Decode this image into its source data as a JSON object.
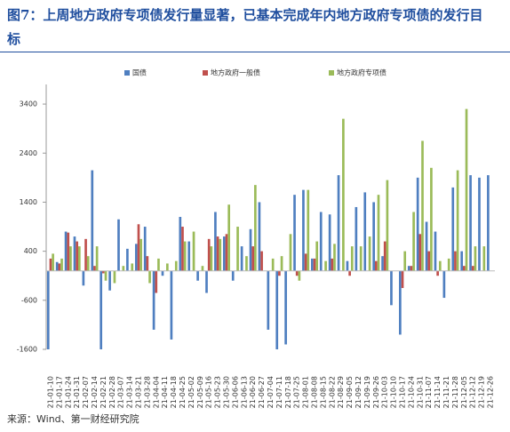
{
  "chart_data": {
    "type": "bar",
    "title": "图7：上周地方政府专项债发行量显著，已基本完成年内地方政府专项债的发行目标",
    "source": "来源：Wind、第一财经研究院",
    "categories": [
      "2021-01-10",
      "2021-01-17",
      "2021-01-24",
      "2021-01-31",
      "2021-02-07",
      "2021-02-14",
      "2021-02-21",
      "2021-02-28",
      "2021-03-07",
      "2021-03-14",
      "2021-03-21",
      "2021-03-28",
      "2021-04-04",
      "2021-04-11",
      "2021-04-18",
      "2021-04-25",
      "2021-05-02",
      "2021-05-09",
      "2021-05-16",
      "2021-05-23",
      "2021-05-30",
      "2021-06-06",
      "2021-06-13",
      "2021-06-20",
      "2021-06-27",
      "2021-07-04",
      "2021-07-11",
      "2021-07-18",
      "2021-07-25",
      "2021-08-01",
      "2021-08-08",
      "2021-08-15",
      "2021-08-22",
      "2021-08-29",
      "2021-09-05",
      "2021-09-12",
      "2021-09-19",
      "2021-09-26",
      "2021-10-03",
      "2021-10-10",
      "2021-10-17",
      "2021-10-24",
      "2021-10-31",
      "2021-11-07",
      "2021-11-14",
      "2021-11-21",
      "2021-11-28",
      "2021-12-05",
      "2021-12-12",
      "2021-12-19",
      "2021-12-26"
    ],
    "series": [
      {
        "name": "国债",
        "color": "#4f7fc0",
        "values": [
          -1600,
          180,
          800,
          700,
          -300,
          2050,
          -1600,
          -400,
          1050,
          450,
          550,
          900,
          -1200,
          -100,
          -1400,
          1100,
          600,
          -200,
          -450,
          1200,
          700,
          -200,
          500,
          850,
          1400,
          -1200,
          -1600,
          -1500,
          1550,
          1650,
          250,
          1200,
          1150,
          1950,
          200,
          1300,
          1600,
          1400,
          300,
          -700,
          -1300,
          100,
          1900,
          1000,
          800,
          -550,
          1700,
          400,
          1950,
          1900,
          1950
        ]
      },
      {
        "name": "地方政府一般债",
        "color": "#c0504d",
        "values": [
          250,
          150,
          780,
          600,
          650,
          100,
          -50,
          0,
          0,
          0,
          950,
          300,
          -450,
          0,
          0,
          900,
          0,
          0,
          650,
          700,
          750,
          0,
          0,
          500,
          400,
          0,
          -100,
          0,
          -100,
          350,
          250,
          0,
          250,
          0,
          -100,
          0,
          0,
          200,
          600,
          0,
          -350,
          100,
          750,
          400,
          -100,
          0,
          400,
          100,
          100,
          0,
          0
        ]
      },
      {
        "name": "地方政府专项债",
        "color": "#9bbb59",
        "values": [
          350,
          250,
          500,
          500,
          300,
          500,
          -200,
          -250,
          100,
          150,
          650,
          -250,
          250,
          150,
          200,
          600,
          800,
          100,
          500,
          650,
          1350,
          900,
          300,
          1750,
          0,
          250,
          300,
          750,
          -200,
          1650,
          600,
          200,
          550,
          3100,
          500,
          500,
          700,
          1550,
          1850,
          0,
          400,
          1200,
          2650,
          2100,
          200,
          250,
          2050,
          3300,
          500,
          500,
          0
        ]
      }
    ],
    "ylim": [
      -1600,
      3800
    ],
    "yticks": [
      -1600,
      -600,
      400,
      1400,
      2400,
      3400
    ]
  }
}
